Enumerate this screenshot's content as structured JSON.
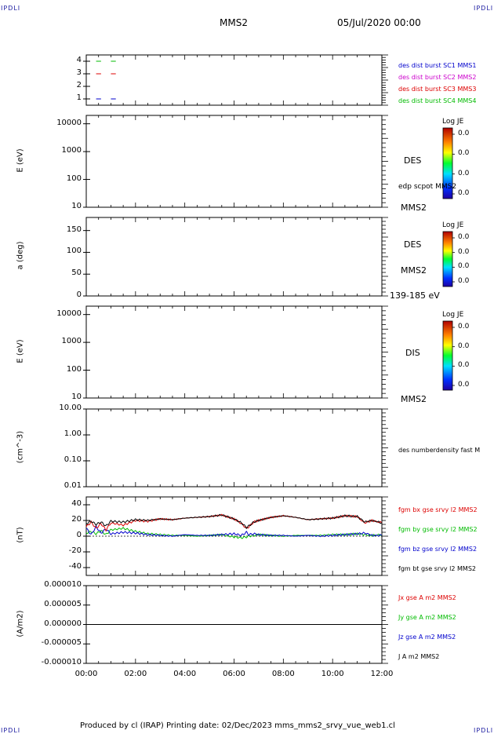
{
  "header": {
    "corner_left": "IPDLI",
    "corner_right": "IPDLI",
    "title": "MMS2",
    "date": "05/Jul/2020 00:00",
    "footer_left": "IPDLI",
    "footer_right": "IPDLI",
    "footer": "Produced by cl (IRAP)   Printing date: 02/Dec/2023   mms_mms2_srvy_vue_web1.cl"
  },
  "colors": {
    "black": "#000000",
    "red": "#dd0000",
    "green": "#00bb00",
    "blue": "#0000cc",
    "magenta": "#cc00cc"
  },
  "chart_data": [
    {
      "type": "line",
      "panel": "availability",
      "ylim": [
        0.5,
        4.5
      ],
      "yticks": [
        "4",
        "3",
        "2",
        "1"
      ],
      "series": [
        {
          "name": "des dist burst SC1 MMS1",
          "color": "#0000cc",
          "y": 1,
          "segments": [
            [
              0.4,
              0.6
            ],
            [
              1.0,
              1.2
            ]
          ]
        },
        {
          "name": "des dist burst SC2 MMS2",
          "color": "#cc00cc",
          "y": 2,
          "segments": []
        },
        {
          "name": "des dist burst SC3 MMS3",
          "color": "#dd0000",
          "y": 3,
          "segments": [
            [
              0.4,
              0.6
            ],
            [
              1.0,
              1.2
            ]
          ]
        },
        {
          "name": "des dist burst SC4 MMS4",
          "color": "#00bb00",
          "y": 4,
          "segments": [
            [
              0.4,
              0.6
            ],
            [
              1.0,
              1.2
            ]
          ]
        }
      ]
    },
    {
      "type": "heatmap",
      "panel": "des-energy",
      "ylabel": "E (eV)",
      "yscale": "log",
      "ylim": [
        10,
        20000
      ],
      "yticks": [
        "10000",
        "1000",
        "100",
        "10"
      ],
      "side": [
        "DES",
        "edp scpot MMS2",
        "MMS2"
      ],
      "colorbar": {
        "title": "Log JE",
        "ticks": [
          "0.0",
          "0.0",
          "0.0",
          "0.0"
        ]
      }
    },
    {
      "type": "heatmap",
      "panel": "des-pitch",
      "ylabel": "a (deg)",
      "ylim": [
        0,
        180
      ],
      "yticks": [
        "150",
        "100",
        "50",
        "0"
      ],
      "side": [
        "DES",
        "MMS2",
        "139-185 eV"
      ],
      "colorbar": {
        "title": "Log JE",
        "ticks": [
          "0.0",
          "0.0",
          "0.0",
          "0.0"
        ]
      }
    },
    {
      "type": "heatmap",
      "panel": "dis-energy",
      "ylabel": "E (eV)",
      "yscale": "log",
      "ylim": [
        10,
        20000
      ],
      "yticks": [
        "10000",
        "1000",
        "100",
        "10"
      ],
      "side": [
        "DIS",
        "MMS2"
      ],
      "colorbar": {
        "title": "Log JE",
        "ticks": [
          "0.0",
          "0.0",
          "0.0",
          "0.0"
        ]
      }
    },
    {
      "type": "line",
      "panel": "density",
      "ylabel": "(cm^-3)",
      "yscale": "log",
      "ylim": [
        0.01,
        10
      ],
      "yticks": [
        "10.00",
        "1.00",
        "0.10",
        "0.01"
      ],
      "legend": [
        "des numberdensity fast M"
      ]
    },
    {
      "type": "line",
      "panel": "fgm",
      "ylabel": "(nT)",
      "ylim": [
        -50,
        50
      ],
      "yticks": [
        "40",
        "20",
        "0",
        "-20",
        "-40"
      ],
      "x_hours": [
        0,
        0.2,
        0.4,
        0.6,
        0.8,
        1,
        1.5,
        2,
        2.5,
        3,
        3.5,
        4,
        4.5,
        5,
        5.5,
        6,
        6.3,
        6.5,
        6.6,
        6.8,
        7,
        7.5,
        8,
        8.5,
        9,
        9.5,
        10,
        10.5,
        11,
        11.3,
        11.6,
        12
      ],
      "series": [
        {
          "name": "fgm bx gse srvy l2 MMS2",
          "color": "#dd0000",
          "values": [
            12,
            18,
            10,
            16,
            8,
            17,
            14,
            20,
            19,
            22,
            21,
            23,
            24,
            25,
            27,
            22,
            16,
            10,
            12,
            18,
            20,
            24,
            26,
            24,
            21,
            22,
            23,
            26,
            25,
            17,
            20,
            17
          ]
        },
        {
          "name": "fgm by gse srvy l2 MMS2",
          "color": "#00bb00",
          "values": [
            4,
            6,
            3,
            7,
            2,
            8,
            10,
            6,
            3,
            2,
            1,
            1,
            0,
            1,
            2,
            -1,
            -2,
            -1,
            0,
            1,
            2,
            1,
            0,
            1,
            1,
            1,
            2,
            2,
            3,
            2,
            1,
            2
          ]
        },
        {
          "name": "fgm bz gse srvy l2 MMS2",
          "color": "#0000cc",
          "values": [
            10,
            2,
            12,
            4,
            9,
            3,
            5,
            4,
            2,
            1,
            0,
            2,
            1,
            1,
            2,
            3,
            1,
            5,
            2,
            3,
            2,
            1,
            1,
            0,
            1,
            0,
            1,
            2,
            3,
            4,
            1,
            1
          ]
        },
        {
          "name": "fgm bt gse srvy l2 MMS2",
          "color": "#000000",
          "values": [
            16,
            19,
            15,
            18,
            13,
            19,
            18,
            21,
            20,
            22,
            21,
            23,
            24,
            25,
            27,
            22,
            17,
            11,
            13,
            18,
            20,
            24,
            26,
            24,
            21,
            22,
            23,
            26,
            25,
            18,
            20,
            17
          ]
        }
      ]
    },
    {
      "type": "line",
      "panel": "current",
      "ylabel": "(A/m2)",
      "ylim": [
        -1e-05,
        1e-05
      ],
      "yticks": [
        "0.000010",
        "0.000005",
        "0.000000",
        "-0.000005",
        "-0.000010"
      ],
      "xticks": [
        "00:00",
        "02:00",
        "04:00",
        "06:00",
        "08:00",
        "10:00",
        "12:00"
      ],
      "series": [
        {
          "name": "Jx gse A m2 MMS2",
          "color": "#dd0000"
        },
        {
          "name": "Jy gse A m2 MMS2",
          "color": "#00bb00"
        },
        {
          "name": "Jz gse A m2 MMS2",
          "color": "#0000cc"
        },
        {
          "name": "J A m2 MMS2",
          "color": "#000000"
        }
      ]
    }
  ]
}
